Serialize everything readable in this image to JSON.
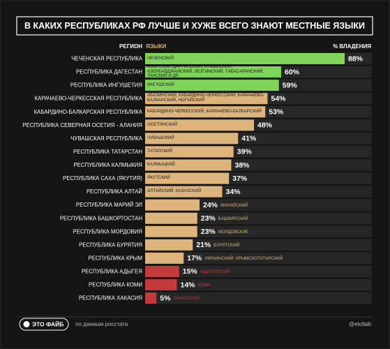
{
  "chart_data": {
    "type": "bar",
    "title": "В КАКИХ РЕСПУБЛИКАХ РФ ЛУЧШЕ И ХУЖЕ ВСЕГО ЗНАЮТ МЕСТНЫЕ ЯЗЫКИ",
    "column_labels": [
      "РЕГИОН",
      "ЯЗЫКИ",
      "% ВЛАДЕНИЯ"
    ],
    "categories": [
      "ЧЕЧЕНСКАЯ РЕСПУБЛИКА",
      "РЕСПУБЛИКА ДАГЕСТАН",
      "РЕСПУБЛИКА ИНГУШЕТИЯ",
      "КАРАЧАЕВО-ЧЕРКЕССКАЯ РЕСПУБЛИКА",
      "КАБАРДИНО-БАЛКАРСКАЯ РЕСПУБЛИКА",
      "РЕСПУБЛИКА СЕВЕРНАЯ ОСЕТИЯ - АЛАНИЯ",
      "ЧУВАШСКАЯ РЕСПУБЛИКА",
      "РЕСПУБЛИКА ТАТАРСТАН",
      "РЕСПУБЛИКА КАЛМЫКИЯ",
      "РЕСПУБЛИКА САХА (ЯКУТИЯ)",
      "РЕСПУБЛИКА АЛТАЙ",
      "РЕСПУБЛИКА МАРИЙ ЭЛ",
      "РЕСПУБЛИКА БАШКОРТОСТАН",
      "РЕСПУБЛИКА МОРДОВИЯ",
      "РЕСПУБЛИКА БУРЯТИЯ",
      "РЕСПУБЛИКА КРЫМ",
      "РЕСПУБЛИКА АДЫГЕЯ",
      "РЕСПУБЛИКА КОМИ",
      "РЕСПУБЛИКА ХАКАСИЯ"
    ],
    "languages": [
      "ЧЕЧЕНСКИЙ",
      "АВАРСКИЙ, ДАРГИНСКИЙ, КУМЫКСКИЙ, АЗЕРБАЙДЖАНСКИЙ, ЛЕЗГИНСКИЙ, ТАБАСАРАНСКИЙ, ЛАКСКИЙ И ДР.",
      "ИНГУШСКИЙ",
      "АБАЗИНСКИЙ, КАБАРДИНО-ЧЕРКЕССКИЙ, КАРАЧАЕВО-БАЛКАРСКИЙ, НОГАЙСКИЙ",
      "КАБАРДИНО-ЧЕРКЕССКИЙ, КАРАЧАЕВО-БАЛКАРСКИЙ",
      "ОСЕТИНСКИЙ",
      "ЧУВАШСКИЙ",
      "ТАТАРСКИЙ",
      "КАЛМЫЦКИЙ",
      "ЯКУТСКИЙ",
      "АЛТАЙСКИЙ, КАЗАХСКИЙ",
      "МАРИЙСКИЙ",
      "БАШКИРСКИЙ",
      "МОРДОВСКИЕ",
      "БУРЯТСКИЙ",
      "УКРАИНСКИЙ, КРЫМСКОТАТАРСКИЙ",
      "АДЫГЕЙСКИЙ",
      "КОМИ",
      "ХАКАССКИЙ"
    ],
    "values": [
      88,
      60,
      59,
      54,
      53,
      48,
      41,
      39,
      38,
      37,
      34,
      24,
      23,
      23,
      21,
      17,
      15,
      14,
      5
    ],
    "value_labels": [
      "88%",
      "60%",
      "59%",
      "54%",
      "53%",
      "48%",
      "41%",
      "39%",
      "38%",
      "37%",
      "34%",
      "24%",
      "23%",
      "23%",
      "21%",
      "17%",
      "15%",
      "14%",
      "5%"
    ],
    "colors": [
      "#7fd45a",
      "#7fd45a",
      "#7fd45a",
      "#dcb47c",
      "#dcb47c",
      "#dcb47c",
      "#dcb47c",
      "#dcb47c",
      "#dcb47c",
      "#dcb47c",
      "#dcb47c",
      "#dcb47c",
      "#dcb47c",
      "#dcb47c",
      "#dcb47c",
      "#dcb47c",
      "#c23a3c",
      "#c23a3c",
      "#c23a3c"
    ],
    "xlim": [
      0,
      100
    ]
  },
  "footer": {
    "brand": "ЭТО ФАЙБ",
    "source": "по данным росстата",
    "handle": "@etofaib"
  }
}
